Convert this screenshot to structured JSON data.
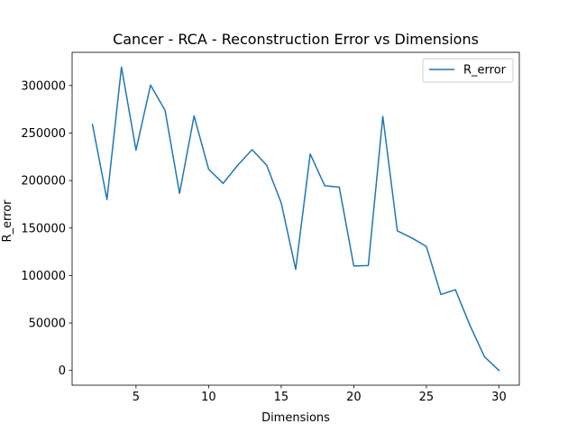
{
  "chart_data": {
    "type": "line",
    "title": "Cancer - RCA - Reconstruction Error vs Dimensions",
    "xlabel": "Dimensions",
    "ylabel": "R_error",
    "xlim": [
      0.6,
      31.4
    ],
    "ylim": [
      -15500,
      335000
    ],
    "x_ticks": [
      5,
      10,
      15,
      20,
      25,
      30
    ],
    "y_ticks": [
      0,
      50000,
      100000,
      150000,
      200000,
      250000,
      300000
    ],
    "grid": false,
    "legend_position": "top-right",
    "series": [
      {
        "name": "R_error",
        "color": "#1f77b4",
        "x": [
          2,
          3,
          4,
          5,
          6,
          7,
          8,
          9,
          10,
          11,
          12,
          13,
          14,
          15,
          16,
          17,
          18,
          19,
          20,
          21,
          22,
          23,
          24,
          25,
          26,
          27,
          28,
          29,
          30
        ],
        "y": [
          259000,
          180000,
          319500,
          232000,
          300500,
          274000,
          186500,
          268000,
          212000,
          197000,
          216000,
          232500,
          216000,
          176500,
          106500,
          228000,
          194500,
          193000,
          110000,
          110500,
          267500,
          147000,
          139500,
          130500,
          80000,
          85000,
          47500,
          14500,
          0
        ]
      }
    ]
  }
}
